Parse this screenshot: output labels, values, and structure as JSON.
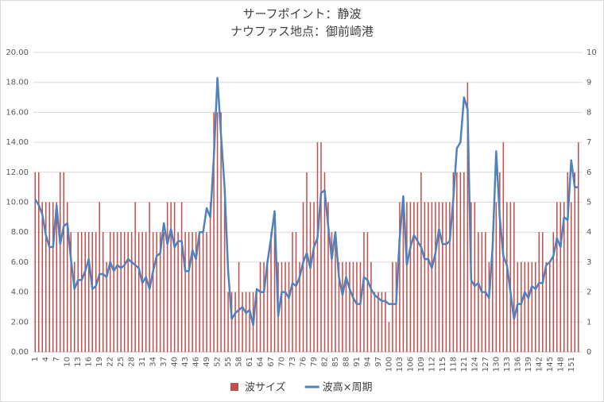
{
  "chart_data": {
    "type": "bar_line",
    "title": "サーフポイント：静波",
    "subtitle": "ナウファス地点：御前崎港",
    "categories": [
      "1",
      null,
      null,
      "4",
      null,
      null,
      "7",
      null,
      null,
      "10",
      null,
      null,
      "13",
      null,
      null,
      "16",
      null,
      null,
      "19",
      null,
      null,
      "22",
      null,
      null,
      "25",
      null,
      null,
      "28",
      null,
      null,
      "31",
      null,
      null,
      "34",
      null,
      null,
      "37",
      null,
      null,
      "40",
      null,
      null,
      "43",
      null,
      null,
      "46",
      null,
      null,
      "49",
      null,
      null,
      "52",
      null,
      null,
      "55",
      null,
      null,
      "58",
      null,
      null,
      "61",
      null,
      null,
      "64",
      null,
      null,
      "67",
      null,
      null,
      "70",
      null,
      null,
      "73",
      null,
      null,
      "76",
      null,
      null,
      "79",
      null,
      null,
      "82",
      null,
      null,
      "85",
      null,
      null,
      "88",
      null,
      null,
      "91",
      null,
      null,
      "94",
      null,
      null,
      "97",
      null,
      null,
      "100",
      null,
      null,
      "103",
      null,
      null,
      "106",
      null,
      null,
      "109",
      null,
      null,
      "112",
      null,
      null,
      "115",
      null,
      null,
      "118",
      null,
      null,
      "121",
      null,
      null,
      "124",
      null,
      null,
      "127",
      null,
      null,
      "130",
      null,
      null,
      "133",
      null,
      null,
      "136",
      null,
      null,
      "139",
      null,
      null,
      "142",
      null,
      null,
      "145",
      null,
      null,
      "148",
      null,
      null,
      "151",
      null,
      null
    ],
    "series": [
      {
        "name": "波サイズ",
        "color": "#c0504d",
        "axis": "y2",
        "kind": "bar",
        "values": [
          6,
          6,
          5,
          5,
          5,
          5,
          5,
          6,
          6,
          5,
          4,
          3,
          4,
          4,
          4,
          4,
          4,
          4,
          5,
          4,
          3,
          4,
          4,
          4,
          4,
          4,
          4,
          4,
          5,
          4,
          4,
          4,
          5,
          4,
          4,
          4,
          4,
          5,
          5,
          5,
          4,
          5,
          4,
          4,
          4,
          4,
          4,
          4,
          4,
          5,
          8,
          8,
          8,
          5,
          2,
          2,
          2,
          3,
          2,
          2,
          2,
          2,
          2,
          3,
          3,
          3,
          4,
          4,
          3,
          3,
          3,
          3,
          4,
          4,
          3,
          5,
          6,
          5,
          5,
          7,
          7,
          6,
          5,
          4,
          4,
          3,
          3,
          3,
          3,
          3,
          3,
          3,
          4,
          4,
          3,
          2,
          2,
          2,
          2,
          1,
          3,
          3,
          5,
          5,
          5,
          5,
          5,
          5,
          6,
          5,
          5,
          5,
          5,
          5,
          5,
          5,
          5,
          6,
          6,
          6,
          6,
          9,
          5,
          5,
          4,
          4,
          4,
          3,
          4,
          5,
          6,
          7,
          5,
          5,
          5,
          3,
          3,
          3,
          3,
          3,
          3,
          4,
          4,
          3,
          3,
          4,
          5,
          5,
          5,
          6,
          5,
          6,
          7
        ]
      },
      {
        "name": "波高×周期",
        "color": "#4f81bd",
        "kind": "line",
        "values": [
          10.2,
          9.8,
          9.2,
          7.8,
          7,
          7,
          9.8,
          7.2,
          8.4,
          8.6,
          6.2,
          4.2,
          4.8,
          4.8,
          5.4,
          6.2,
          4.2,
          4.4,
          5.2,
          5.2,
          5,
          6,
          5.4,
          5.8,
          5.6,
          5.8,
          6.2,
          6,
          5.8,
          5.6,
          4.6,
          5,
          4.2,
          5.4,
          6.4,
          6.6,
          8.6,
          7.2,
          8.2,
          7,
          7.4,
          7.4,
          5.4,
          5.4,
          6.8,
          6.2,
          8,
          8,
          9.6,
          9,
          13,
          18.3,
          14.5,
          11,
          5.4,
          2.2,
          2.6,
          2.8,
          3,
          2.6,
          2.8,
          1.8,
          4.2,
          4,
          4,
          6,
          7.6,
          9.4,
          2.4,
          4,
          4,
          3.6,
          4.6,
          4.4,
          5,
          6,
          6.6,
          5.6,
          7,
          7.6,
          10.6,
          10.8,
          8.4,
          6.2,
          8,
          5,
          3.8,
          5,
          4.2,
          3.6,
          3.2,
          3.2,
          5,
          4.8,
          4.2,
          3.8,
          3.6,
          3.4,
          3.4,
          3.2,
          3.2,
          3.2,
          7.6,
          10.4,
          5.8,
          7,
          7.8,
          7.4,
          7,
          6.2,
          6.2,
          5.6,
          6.6,
          8.2,
          7.2,
          7.2,
          7.4,
          10.2,
          13.6,
          14,
          17,
          16.2,
          4.8,
          4.4,
          4.6,
          4,
          4,
          3.6,
          7,
          13.4,
          9,
          6.4,
          5.8,
          4,
          2.2,
          3.2,
          3.2,
          4,
          3.6,
          4.4,
          4.2,
          4.6,
          4.6,
          5.8,
          6,
          6.4,
          7.6,
          7,
          9,
          8.8,
          12.8,
          11,
          11
        ]
      }
    ],
    "ylim": [
      0,
      20
    ],
    "yticks": [
      {
        "value": 0,
        "label": "0.00"
      },
      {
        "value": 2,
        "label": "2.00"
      },
      {
        "value": 4,
        "label": "4.00"
      },
      {
        "value": 6,
        "label": "6.00"
      },
      {
        "value": 8,
        "label": "8.00"
      },
      {
        "value": 10,
        "label": "10.00"
      },
      {
        "value": 12,
        "label": "12.00"
      },
      {
        "value": 14,
        "label": "14.00"
      },
      {
        "value": 16,
        "label": "16.00"
      },
      {
        "value": 18,
        "label": "18.00"
      },
      {
        "value": 20,
        "label": "20.00"
      }
    ],
    "y2lim": [
      0,
      10
    ],
    "y2ticks": [
      0,
      1,
      2,
      3,
      4,
      5,
      6,
      7,
      8,
      9,
      10
    ],
    "grid": true,
    "legend": "bottom"
  }
}
